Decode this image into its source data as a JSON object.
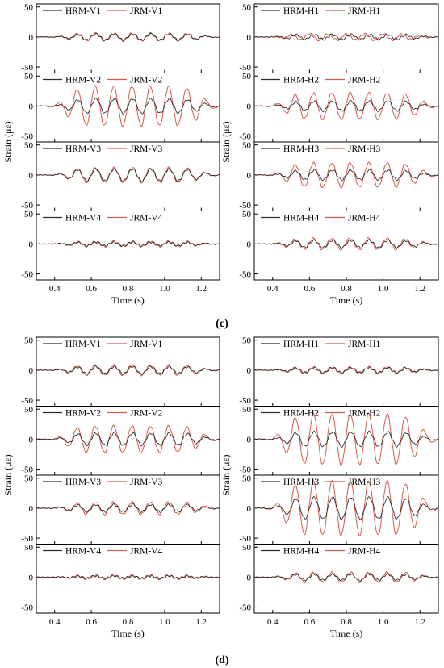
{
  "figure": {
    "ylabel": "Strain (με)",
    "xlabel": "Time (s)",
    "group_labels": [
      "(c)",
      "(d)"
    ]
  },
  "colors": {
    "hrm": "#2b2b2b",
    "jrm": "#d85a4a",
    "axis": "#000000"
  },
  "chart_data": [
    {
      "type": "line",
      "group": "(c)",
      "column": "left",
      "row": 1,
      "xlim": [
        0.3,
        1.3
      ],
      "ylim": [
        -60,
        55
      ],
      "yticks": [
        50,
        0,
        -50
      ],
      "xticks": [
        0.4,
        0.6,
        0.8,
        1.0,
        1.2
      ],
      "show_xticklabels": false,
      "xlabel": "",
      "ylabel": "Strain (με)",
      "legend": "top",
      "series": [
        {
          "name": "HRM-V1",
          "amplitude": 5,
          "frequency": 10,
          "phase": 0
        },
        {
          "name": "JRM-V1",
          "amplitude": 6,
          "frequency": 10,
          "phase": 0.1
        }
      ]
    },
    {
      "type": "line",
      "group": "(c)",
      "column": "left",
      "row": 2,
      "xlim": [
        0.3,
        1.3
      ],
      "ylim": [
        -60,
        55
      ],
      "yticks": [
        50,
        0,
        -50
      ],
      "xticks": [
        0.4,
        0.6,
        0.8,
        1.0,
        1.2
      ],
      "show_xticklabels": false,
      "xlabel": "",
      "ylabel": "Strain (με)",
      "legend": "top",
      "series": [
        {
          "name": "HRM-V2",
          "amplitude": 12,
          "frequency": 10,
          "phase": 0
        },
        {
          "name": "JRM-V2",
          "amplitude": 33,
          "frequency": 10,
          "phase": 0.2
        }
      ]
    },
    {
      "type": "line",
      "group": "(c)",
      "column": "left",
      "row": 3,
      "xlim": [
        0.3,
        1.3
      ],
      "ylim": [
        -60,
        55
      ],
      "yticks": [
        50,
        0,
        -50
      ],
      "xticks": [
        0.4,
        0.6,
        0.8,
        1.0,
        1.2
      ],
      "show_xticklabels": false,
      "xlabel": "",
      "ylabel": "Strain (με)",
      "legend": "top",
      "series": [
        {
          "name": "HRM-V3",
          "amplitude": 10,
          "frequency": 10,
          "phase": 0
        },
        {
          "name": "JRM-V3",
          "amplitude": 12,
          "frequency": 10,
          "phase": 0.1
        }
      ]
    },
    {
      "type": "line",
      "group": "(c)",
      "column": "left",
      "row": 4,
      "xlim": [
        0.3,
        1.3
      ],
      "ylim": [
        -60,
        55
      ],
      "yticks": [
        50,
        0,
        -50
      ],
      "xticks": [
        0.4,
        0.6,
        0.8,
        1.0,
        1.2
      ],
      "show_xticklabels": true,
      "xlabel": "Time (s)",
      "ylabel": "Strain (με)",
      "legend": "top",
      "series": [
        {
          "name": "HRM-V4",
          "amplitude": 3,
          "frequency": 10,
          "phase": 0
        },
        {
          "name": "JRM-V4",
          "amplitude": 4,
          "frequency": 10,
          "phase": 0.1
        }
      ]
    },
    {
      "type": "line",
      "group": "(c)",
      "column": "right",
      "row": 1,
      "xlim": [
        0.3,
        1.3
      ],
      "ylim": [
        -60,
        55
      ],
      "yticks": [
        50,
        0,
        -50
      ],
      "xticks": [
        0.4,
        0.6,
        0.8,
        1.0,
        1.2
      ],
      "show_xticklabels": false,
      "xlabel": "",
      "ylabel": "Strain (με)",
      "legend": "top",
      "series": [
        {
          "name": "HRM-H1",
          "amplitude": 4,
          "frequency": 10,
          "phase": 0
        },
        {
          "name": "JRM-H1",
          "amplitude": 5,
          "frequency": 10,
          "phase": 1.5
        }
      ]
    },
    {
      "type": "line",
      "group": "(c)",
      "column": "right",
      "row": 2,
      "xlim": [
        0.3,
        1.3
      ],
      "ylim": [
        -60,
        55
      ],
      "yticks": [
        50,
        0,
        -50
      ],
      "xticks": [
        0.4,
        0.6,
        0.8,
        1.0,
        1.2
      ],
      "show_xticklabels": false,
      "xlabel": "",
      "ylabel": "Strain (με)",
      "legend": "top",
      "series": [
        {
          "name": "HRM-H2",
          "amplitude": 8,
          "frequency": 10,
          "phase": 0
        },
        {
          "name": "JRM-H2",
          "amplitude": 22,
          "frequency": 10,
          "phase": 0.2
        }
      ]
    },
    {
      "type": "line",
      "group": "(c)",
      "column": "right",
      "row": 3,
      "xlim": [
        0.3,
        1.3
      ],
      "ylim": [
        -60,
        55
      ],
      "yticks": [
        50,
        0,
        -50
      ],
      "xticks": [
        0.4,
        0.6,
        0.8,
        1.0,
        1.2
      ],
      "show_xticklabels": false,
      "xlabel": "",
      "ylabel": "Strain (με)",
      "legend": "top",
      "series": [
        {
          "name": "HRM-H3",
          "amplitude": 8,
          "frequency": 10,
          "phase": 0
        },
        {
          "name": "JRM-H3",
          "amplitude": 20,
          "frequency": 10,
          "phase": 0.2
        }
      ]
    },
    {
      "type": "line",
      "group": "(c)",
      "column": "right",
      "row": 4,
      "xlim": [
        0.3,
        1.3
      ],
      "ylim": [
        -60,
        55
      ],
      "yticks": [
        50,
        0,
        -50
      ],
      "xticks": [
        0.4,
        0.6,
        0.8,
        1.0,
        1.2
      ],
      "show_xticklabels": true,
      "xlabel": "Time (s)",
      "ylabel": "Strain (με)",
      "legend": "top",
      "series": [
        {
          "name": "HRM-H4",
          "amplitude": 6,
          "frequency": 10,
          "phase": 0
        },
        {
          "name": "JRM-H4",
          "amplitude": 9,
          "frequency": 10,
          "phase": 0.3
        }
      ]
    },
    {
      "type": "line",
      "group": "(d)",
      "column": "left",
      "row": 1,
      "xlim": [
        0.3,
        1.3
      ],
      "ylim": [
        -60,
        55
      ],
      "yticks": [
        50,
        0,
        -50
      ],
      "xticks": [
        0.4,
        0.6,
        0.8,
        1.0,
        1.2
      ],
      "show_xticklabels": false,
      "xlabel": "",
      "ylabel": "Strain (με)",
      "legend": "top",
      "series": [
        {
          "name": "HRM-V1",
          "amplitude": 6,
          "frequency": 10,
          "phase": 0
        },
        {
          "name": "JRM-V1",
          "amplitude": 8,
          "frequency": 10,
          "phase": 0.2
        }
      ]
    },
    {
      "type": "line",
      "group": "(d)",
      "column": "left",
      "row": 2,
      "xlim": [
        0.3,
        1.3
      ],
      "ylim": [
        -60,
        55
      ],
      "yticks": [
        50,
        0,
        -50
      ],
      "xticks": [
        0.4,
        0.6,
        0.8,
        1.0,
        1.2
      ],
      "show_xticklabels": false,
      "xlabel": "",
      "ylabel": "Strain (με)",
      "legend": "top",
      "series": [
        {
          "name": "HRM-V2",
          "amplitude": 10,
          "frequency": 10,
          "phase": 0
        },
        {
          "name": "JRM-V2",
          "amplitude": 22,
          "frequency": 10,
          "phase": 0.2
        }
      ]
    },
    {
      "type": "line",
      "group": "(d)",
      "column": "left",
      "row": 3,
      "xlim": [
        0.3,
        1.3
      ],
      "ylim": [
        -60,
        55
      ],
      "yticks": [
        50,
        0,
        -50
      ],
      "xticks": [
        0.4,
        0.6,
        0.8,
        1.0,
        1.2
      ],
      "show_xticklabels": false,
      "xlabel": "",
      "ylabel": "Strain (με)",
      "legend": "top",
      "series": [
        {
          "name": "HRM-V3",
          "amplitude": 6,
          "frequency": 10,
          "phase": 0
        },
        {
          "name": "JRM-V3",
          "amplitude": 10,
          "frequency": 10,
          "phase": 0.2
        }
      ]
    },
    {
      "type": "line",
      "group": "(d)",
      "column": "left",
      "row": 4,
      "xlim": [
        0.3,
        1.3
      ],
      "ylim": [
        -60,
        55
      ],
      "yticks": [
        50,
        0,
        -50
      ],
      "xticks": [
        0.4,
        0.6,
        0.8,
        1.0,
        1.2
      ],
      "show_xticklabels": true,
      "xlabel": "Time (s)",
      "ylabel": "Strain (με)",
      "legend": "top",
      "series": [
        {
          "name": "HRM-V4",
          "amplitude": 2,
          "frequency": 10,
          "phase": 0
        },
        {
          "name": "JRM-V4",
          "amplitude": 3,
          "frequency": 10,
          "phase": 0.2
        }
      ]
    },
    {
      "type": "line",
      "group": "(d)",
      "column": "right",
      "row": 1,
      "xlim": [
        0.3,
        1.3
      ],
      "ylim": [
        -60,
        55
      ],
      "yticks": [
        50,
        0,
        -50
      ],
      "xticks": [
        0.4,
        0.6,
        0.8,
        1.0,
        1.2
      ],
      "show_xticklabels": false,
      "xlabel": "",
      "ylabel": "Strain (με)",
      "legend": "top",
      "series": [
        {
          "name": "HRM-H1",
          "amplitude": 4,
          "frequency": 10,
          "phase": 0
        },
        {
          "name": "JRM-H1",
          "amplitude": 5,
          "frequency": 10,
          "phase": 0.2
        }
      ]
    },
    {
      "type": "line",
      "group": "(d)",
      "column": "right",
      "row": 2,
      "xlim": [
        0.3,
        1.3
      ],
      "ylim": [
        -60,
        55
      ],
      "yticks": [
        50,
        0,
        -50
      ],
      "xticks": [
        0.4,
        0.6,
        0.8,
        1.0,
        1.2
      ],
      "show_xticklabels": false,
      "xlabel": "",
      "ylabel": "Strain (με)",
      "legend": "top",
      "series": [
        {
          "name": "HRM-H2",
          "amplitude": 12,
          "frequency": 10,
          "phase": 0
        },
        {
          "name": "JRM-H2",
          "amplitude": 42,
          "frequency": 10,
          "phase": 0.2
        }
      ]
    },
    {
      "type": "line",
      "group": "(d)",
      "column": "right",
      "row": 3,
      "xlim": [
        0.3,
        1.3
      ],
      "ylim": [
        -60,
        55
      ],
      "yticks": [
        50,
        0,
        -50
      ],
      "xticks": [
        0.4,
        0.6,
        0.8,
        1.0,
        1.2
      ],
      "show_xticklabels": false,
      "xlabel": "",
      "ylabel": "Strain (με)",
      "legend": "top",
      "series": [
        {
          "name": "HRM-H3",
          "amplitude": 18,
          "frequency": 10,
          "phase": 0
        },
        {
          "name": "JRM-H3",
          "amplitude": 45,
          "frequency": 10,
          "phase": 0.2
        }
      ]
    },
    {
      "type": "line",
      "group": "(d)",
      "column": "right",
      "row": 4,
      "xlim": [
        0.3,
        1.3
      ],
      "ylim": [
        -60,
        55
      ],
      "yticks": [
        50,
        0,
        -50
      ],
      "xticks": [
        0.4,
        0.6,
        0.8,
        1.0,
        1.2
      ],
      "show_xticklabels": true,
      "xlabel": "Time (s)",
      "ylabel": "Strain (με)",
      "legend": "top",
      "series": [
        {
          "name": "HRM-H4",
          "amplitude": 5,
          "frequency": 10,
          "phase": 0
        },
        {
          "name": "JRM-H4",
          "amplitude": 8,
          "frequency": 10,
          "phase": 0.2
        }
      ]
    }
  ]
}
